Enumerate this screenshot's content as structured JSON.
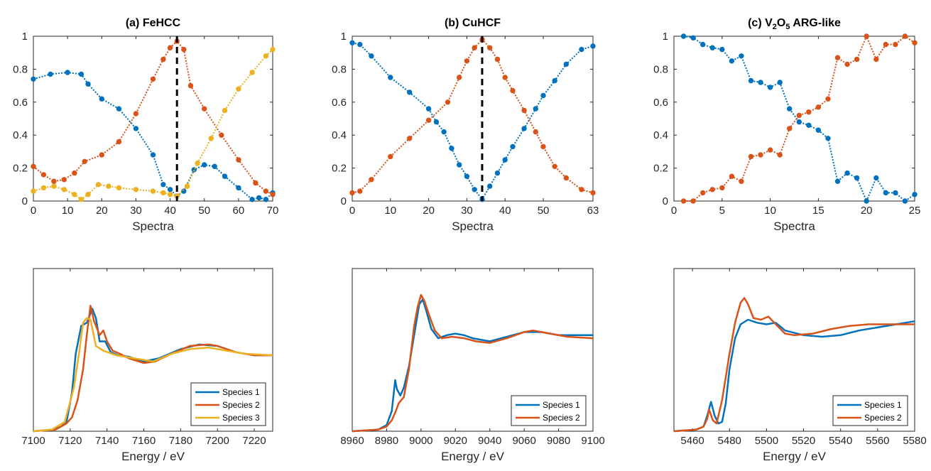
{
  "colors": {
    "species1": "#0072BD",
    "species2": "#D95319",
    "species3": "#EDB120",
    "dashed": "#000000"
  },
  "chart_data": [
    {
      "type": "scatter",
      "title": "(a) FeHCC",
      "xlabel": "Spectra",
      "xlim": [
        0,
        70
      ],
      "ylim": [
        0,
        1
      ],
      "xticks": [
        "0",
        "10",
        "20",
        "30",
        "40",
        "50",
        "60",
        "70"
      ],
      "yticks": [
        "0",
        "0.2",
        "0.4",
        "0.6",
        "0.8",
        "1"
      ],
      "dashed_x": 42,
      "series": [
        {
          "x": [
            0,
            5,
            10,
            14,
            16,
            20,
            25,
            30,
            35,
            38,
            40,
            42,
            44,
            47,
            50,
            53,
            56,
            60,
            64,
            66,
            68,
            70
          ],
          "values": [
            0.74,
            0.77,
            0.78,
            0.77,
            0.71,
            0.62,
            0.56,
            0.44,
            0.28,
            0.1,
            0.07,
            0.03,
            0.06,
            0.19,
            0.22,
            0.21,
            0.15,
            0.08,
            0.01,
            0.02,
            0.01,
            0.05
          ]
        },
        {
          "x": [
            0,
            3,
            6,
            9,
            12,
            15,
            20,
            25,
            30,
            35,
            38,
            40,
            42,
            44,
            46,
            50,
            55,
            60,
            65,
            68,
            70
          ],
          "values": [
            0.21,
            0.16,
            0.12,
            0.13,
            0.17,
            0.24,
            0.28,
            0.36,
            0.53,
            0.74,
            0.86,
            0.93,
            0.97,
            0.92,
            0.7,
            0.56,
            0.4,
            0.25,
            0.11,
            0.06,
            0.04
          ]
        },
        {
          "x": [
            0,
            3,
            6,
            9,
            12,
            14,
            16,
            19,
            22,
            25,
            30,
            35,
            38,
            40,
            42,
            45,
            48,
            52,
            56,
            60,
            64,
            68,
            70
          ],
          "values": [
            0.06,
            0.08,
            0.09,
            0.07,
            0.04,
            0.01,
            0.04,
            0.1,
            0.09,
            0.08,
            0.07,
            0.06,
            0.05,
            0.04,
            0.03,
            0.09,
            0.23,
            0.38,
            0.55,
            0.68,
            0.78,
            0.88,
            0.92
          ]
        }
      ]
    },
    {
      "type": "scatter",
      "title": "(b) CuHCF",
      "xlabel": "Spectra",
      "xlim": [
        0,
        63
      ],
      "ylim": [
        0,
        1
      ],
      "xticks": [
        "0",
        "10",
        "20",
        "30",
        "40",
        "50",
        "63"
      ],
      "yticks": [
        "0",
        "0.2",
        "0.4",
        "0.6",
        "0.8",
        "1"
      ],
      "dashed_x": 34,
      "series": [
        {
          "x": [
            0,
            2,
            5,
            10,
            15,
            20,
            22,
            24,
            26,
            28,
            30,
            32,
            34,
            36,
            38,
            40,
            42,
            45,
            48,
            50,
            53,
            56,
            60,
            63
          ],
          "values": [
            0.96,
            0.95,
            0.88,
            0.75,
            0.66,
            0.56,
            0.48,
            0.42,
            0.32,
            0.22,
            0.15,
            0.07,
            0.01,
            0.09,
            0.17,
            0.25,
            0.33,
            0.44,
            0.56,
            0.64,
            0.73,
            0.83,
            0.92,
            0.94
          ]
        },
        {
          "x": [
            0,
            2,
            5,
            10,
            15,
            20,
            25,
            28,
            30,
            32,
            34,
            36,
            38,
            40,
            42,
            45,
            48,
            50,
            53,
            56,
            60,
            63
          ],
          "values": [
            0.05,
            0.06,
            0.13,
            0.27,
            0.38,
            0.49,
            0.6,
            0.75,
            0.85,
            0.93,
            0.98,
            0.93,
            0.86,
            0.75,
            0.67,
            0.55,
            0.42,
            0.33,
            0.21,
            0.14,
            0.07,
            0.05
          ]
        }
      ]
    },
    {
      "type": "scatter",
      "title": "(c) V2O5 ARG-like",
      "title_parts": {
        "a": "(c) V",
        "sub1": "2",
        "b": "O",
        "sub2": "5",
        "c": " ARG-like"
      },
      "xlabel": "Spectra",
      "xlim": [
        0,
        25
      ],
      "ylim": [
        0,
        1
      ],
      "xticks": [
        "0",
        "5",
        "10",
        "15",
        "20",
        "25"
      ],
      "yticks": [
        "0",
        "0.2",
        "0.4",
        "0.6",
        "0.8",
        "1"
      ],
      "series": [
        {
          "x": [
            1,
            2,
            3,
            4,
            5,
            6,
            7,
            8,
            9,
            10,
            11,
            12,
            13,
            14,
            15,
            16,
            17,
            18,
            19,
            20,
            21,
            22,
            23,
            24,
            25
          ],
          "values": [
            1.0,
            0.99,
            0.95,
            0.93,
            0.92,
            0.85,
            0.88,
            0.73,
            0.72,
            0.69,
            0.72,
            0.56,
            0.48,
            0.46,
            0.43,
            0.38,
            0.12,
            0.17,
            0.14,
            0.0,
            0.14,
            0.05,
            0.05,
            0.0,
            0.04
          ]
        },
        {
          "x": [
            1,
            2,
            3,
            4,
            5,
            6,
            7,
            8,
            9,
            10,
            11,
            12,
            13,
            14,
            15,
            16,
            17,
            18,
            19,
            20,
            21,
            22,
            23,
            24,
            25
          ],
          "values": [
            0.0,
            0.0,
            0.05,
            0.07,
            0.08,
            0.15,
            0.12,
            0.27,
            0.28,
            0.31,
            0.28,
            0.44,
            0.52,
            0.54,
            0.57,
            0.62,
            0.87,
            0.83,
            0.86,
            1.0,
            0.86,
            0.95,
            0.95,
            1.0,
            0.96
          ]
        }
      ]
    },
    {
      "type": "line",
      "xlabel": "Energy / eV",
      "xlim": [
        7100,
        7230
      ],
      "ylim": [
        0,
        1.05
      ],
      "xticks": [
        "7100",
        "7120",
        "7140",
        "7160",
        "7180",
        "7200",
        "7220"
      ],
      "legend": [
        "Species 1",
        "Species 2",
        "Species 3"
      ],
      "legend_position": "bottom-right",
      "series": [
        {
          "x": [
            7100,
            7110,
            7115,
            7118,
            7121,
            7123,
            7126,
            7129,
            7132,
            7134,
            7136,
            7139,
            7142,
            7146,
            7152,
            7160,
            7168,
            7180,
            7190,
            7200,
            7210,
            7220,
            7230
          ],
          "values": [
            0,
            0.01,
            0.03,
            0.06,
            0.25,
            0.5,
            0.68,
            0.7,
            0.79,
            0.73,
            0.58,
            0.58,
            0.51,
            0.49,
            0.48,
            0.45,
            0.47,
            0.53,
            0.56,
            0.55,
            0.51,
            0.49,
            0.49
          ]
        },
        {
          "x": [
            7100,
            7112,
            7118,
            7121,
            7124,
            7127,
            7129,
            7131,
            7133,
            7136,
            7138,
            7140,
            7143,
            7147,
            7152,
            7160,
            7166,
            7175,
            7185,
            7195,
            7200,
            7210,
            7220,
            7230
          ],
          "values": [
            0,
            0.01,
            0.05,
            0.09,
            0.2,
            0.4,
            0.62,
            0.81,
            0.71,
            0.62,
            0.65,
            0.58,
            0.52,
            0.5,
            0.47,
            0.44,
            0.45,
            0.5,
            0.55,
            0.56,
            0.55,
            0.51,
            0.49,
            0.49
          ]
        },
        {
          "x": [
            7100,
            7110,
            7117,
            7120,
            7122,
            7125,
            7127,
            7129,
            7131,
            7134,
            7138,
            7145,
            7155,
            7165,
            7175,
            7185,
            7195,
            7205,
            7215,
            7230
          ],
          "values": [
            0,
            0.01,
            0.06,
            0.19,
            0.28,
            0.52,
            0.7,
            0.73,
            0.72,
            0.55,
            0.52,
            0.49,
            0.47,
            0.45,
            0.5,
            0.53,
            0.54,
            0.52,
            0.5,
            0.49
          ]
        }
      ]
    },
    {
      "type": "line",
      "xlabel": "Energy / eV",
      "xlim": [
        8960,
        9100
      ],
      "ylim": [
        0,
        1.05
      ],
      "xticks": [
        "8960",
        "8980",
        "9000",
        "9020",
        "9040",
        "9060",
        "9080",
        "9100"
      ],
      "legend": [
        "Species 1",
        "Species 2"
      ],
      "legend_position": "bottom-right",
      "series": [
        {
          "x": [
            8960,
            8975,
            8980,
            8983,
            8985,
            8986,
            8988,
            8990,
            8993,
            8996,
            8999,
            9001,
            9003,
            9006,
            9010,
            9015,
            9020,
            9025,
            9030,
            9040,
            9050,
            9060,
            9070,
            9080,
            9090,
            9100
          ],
          "values": [
            0,
            0.01,
            0.04,
            0.13,
            0.33,
            0.27,
            0.23,
            0.28,
            0.42,
            0.62,
            0.82,
            0.85,
            0.78,
            0.66,
            0.6,
            0.62,
            0.63,
            0.62,
            0.6,
            0.58,
            0.61,
            0.64,
            0.64,
            0.62,
            0.62,
            0.62
          ]
        },
        {
          "x": [
            8960,
            8975,
            8980,
            8983,
            8985,
            8987,
            8990,
            8993,
            8996,
            8998,
            9000,
            9002,
            9005,
            9008,
            9012,
            9018,
            9025,
            9032,
            9040,
            9050,
            9060,
            9065,
            9075,
            9085,
            9100
          ],
          "values": [
            0,
            0.01,
            0.03,
            0.07,
            0.12,
            0.18,
            0.22,
            0.4,
            0.68,
            0.8,
            0.88,
            0.84,
            0.74,
            0.65,
            0.6,
            0.61,
            0.6,
            0.58,
            0.57,
            0.6,
            0.64,
            0.65,
            0.63,
            0.61,
            0.6
          ]
        }
      ]
    },
    {
      "type": "line",
      "xlabel": "Energy / eV",
      "xlim": [
        5450,
        5580
      ],
      "ylim": [
        0,
        1.05
      ],
      "xticks": [
        "5460",
        "5480",
        "5500",
        "5520",
        "5540",
        "5560",
        "5580"
      ],
      "legend": [
        "Species 1",
        "Species 2"
      ],
      "legend_position": "bottom-right",
      "series": [
        {
          "x": [
            5450,
            5462,
            5466,
            5468,
            5470,
            5472,
            5474,
            5476,
            5478,
            5480,
            5483,
            5486,
            5490,
            5495,
            5500,
            5505,
            5510,
            5520,
            5530,
            5540,
            5550,
            5560,
            5570,
            5580
          ],
          "values": [
            0,
            0.01,
            0.03,
            0.1,
            0.19,
            0.1,
            0.05,
            0.06,
            0.18,
            0.4,
            0.6,
            0.69,
            0.72,
            0.7,
            0.69,
            0.7,
            0.65,
            0.62,
            0.61,
            0.62,
            0.65,
            0.67,
            0.69,
            0.71
          ]
        },
        {
          "x": [
            5450,
            5462,
            5466,
            5468,
            5469,
            5471,
            5473,
            5476,
            5480,
            5483,
            5486,
            5488,
            5490,
            5493,
            5497,
            5501,
            5505,
            5510,
            5515,
            5525,
            5535,
            5545,
            5555,
            5565,
            5580
          ],
          "values": [
            0,
            0.01,
            0.03,
            0.08,
            0.14,
            0.07,
            0.05,
            0.2,
            0.5,
            0.7,
            0.83,
            0.86,
            0.82,
            0.73,
            0.72,
            0.74,
            0.69,
            0.63,
            0.62,
            0.63,
            0.66,
            0.68,
            0.69,
            0.69,
            0.69
          ]
        }
      ]
    }
  ]
}
